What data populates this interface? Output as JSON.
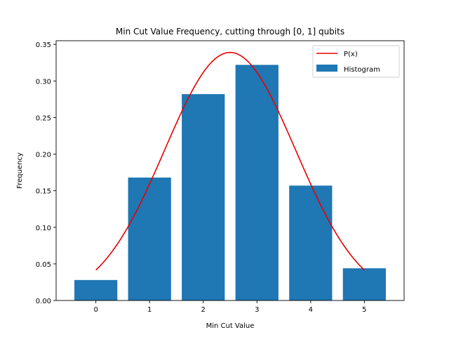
{
  "chart_data": {
    "type": "bar",
    "title": "Min Cut Value Frequency, cutting through [0, 1] qubits",
    "xlabel": "Min Cut Value",
    "ylabel": "Frequency",
    "categories": [
      0,
      1,
      2,
      3,
      4,
      5
    ],
    "x_tick_labels": [
      "0",
      "1",
      "2",
      "3",
      "4",
      "5"
    ],
    "xlim": [
      -0.74,
      5.74
    ],
    "ylim": [
      0,
      0.355
    ],
    "y_ticks": [
      0.0,
      0.05,
      0.1,
      0.15,
      0.2,
      0.25,
      0.3,
      0.35
    ],
    "y_tick_labels": [
      "0.00",
      "0.05",
      "0.10",
      "0.15",
      "0.20",
      "0.25",
      "0.30",
      "0.35"
    ],
    "grid": false,
    "legend_position": "top-right",
    "series": [
      {
        "name": "Histogram",
        "kind": "bar",
        "color": "#1f77b4",
        "values": [
          0.028,
          0.168,
          0.282,
          0.322,
          0.157,
          0.044
        ]
      },
      {
        "name": "P(x)",
        "kind": "line",
        "color": "#e60000",
        "curve": {
          "form": "gaussian",
          "mean": 2.5,
          "std": 1.22,
          "peak": 0.339,
          "x_start": 0,
          "x_end": 5
        }
      }
    ]
  }
}
